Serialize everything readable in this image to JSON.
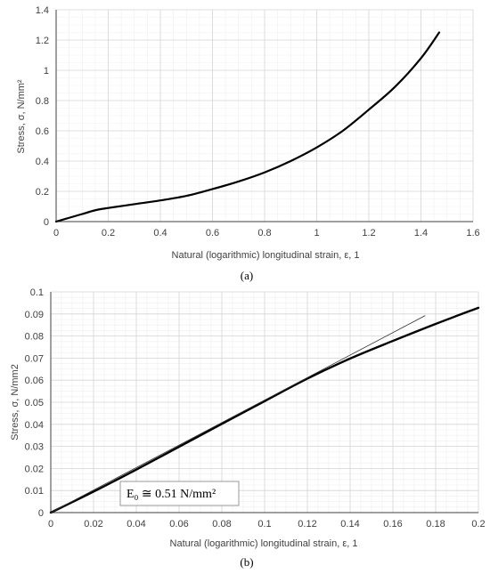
{
  "chart_data": [
    {
      "type": "line",
      "panel": "(a)",
      "xlabel": "Natural (logarithmic) longitudinal strain, ε, 1",
      "ylabel": "Stress, σ, N/mm²",
      "xlim": [
        0,
        1.6
      ],
      "ylim": [
        0,
        1.4
      ],
      "xticks": [
        "0",
        "0.2",
        "0.4",
        "0.6",
        "0.8",
        "1",
        "1.2",
        "1.4",
        "1.6"
      ],
      "yticks": [
        "0",
        "0.2",
        "0.4",
        "0.6",
        "0.8",
        "1",
        "1.2",
        "1.4"
      ],
      "grid": true,
      "series": [
        {
          "x": [
            0,
            0.05,
            0.1,
            0.15,
            0.2,
            0.3,
            0.4,
            0.5,
            0.6,
            0.7,
            0.8,
            0.9,
            1.0,
            1.1,
            1.2,
            1.3,
            1.4,
            1.47
          ],
          "y": [
            0,
            0.025,
            0.05,
            0.075,
            0.09,
            0.115,
            0.14,
            0.17,
            0.215,
            0.265,
            0.325,
            0.4,
            0.49,
            0.6,
            0.74,
            0.89,
            1.08,
            1.25
          ]
        }
      ]
    },
    {
      "type": "line",
      "panel": "(b)",
      "xlabel": "Natural (logarithmic) longitudinal strain, ε, 1",
      "ylabel": "Stress, σ, N/mm2",
      "xlim": [
        0,
        0.2
      ],
      "ylim": [
        0,
        0.1
      ],
      "xticks": [
        "0",
        "0.02",
        "0.04",
        "0.06",
        "0.08",
        "0.1",
        "0.12",
        "0.14",
        "0.16",
        "0.18",
        "0.2"
      ],
      "yticks": [
        "0",
        "0.01",
        "0.02",
        "0.03",
        "0.04",
        "0.05",
        "0.06",
        "0.07",
        "0.08",
        "0.09",
        "0.1"
      ],
      "grid": true,
      "annotation": "E₀ ≅ 0.51 N/mm²",
      "series": [
        {
          "x": [
            0,
            0.02,
            0.04,
            0.06,
            0.08,
            0.1,
            0.12,
            0.14,
            0.16,
            0.18,
            0.2
          ],
          "y": [
            0,
            0.0095,
            0.0195,
            0.0298,
            0.0402,
            0.0505,
            0.0607,
            0.0698,
            0.0778,
            0.0855,
            0.0928
          ]
        },
        {
          "x": [
            0,
            0.175
          ],
          "y": [
            0,
            0.0892
          ]
        }
      ]
    }
  ]
}
